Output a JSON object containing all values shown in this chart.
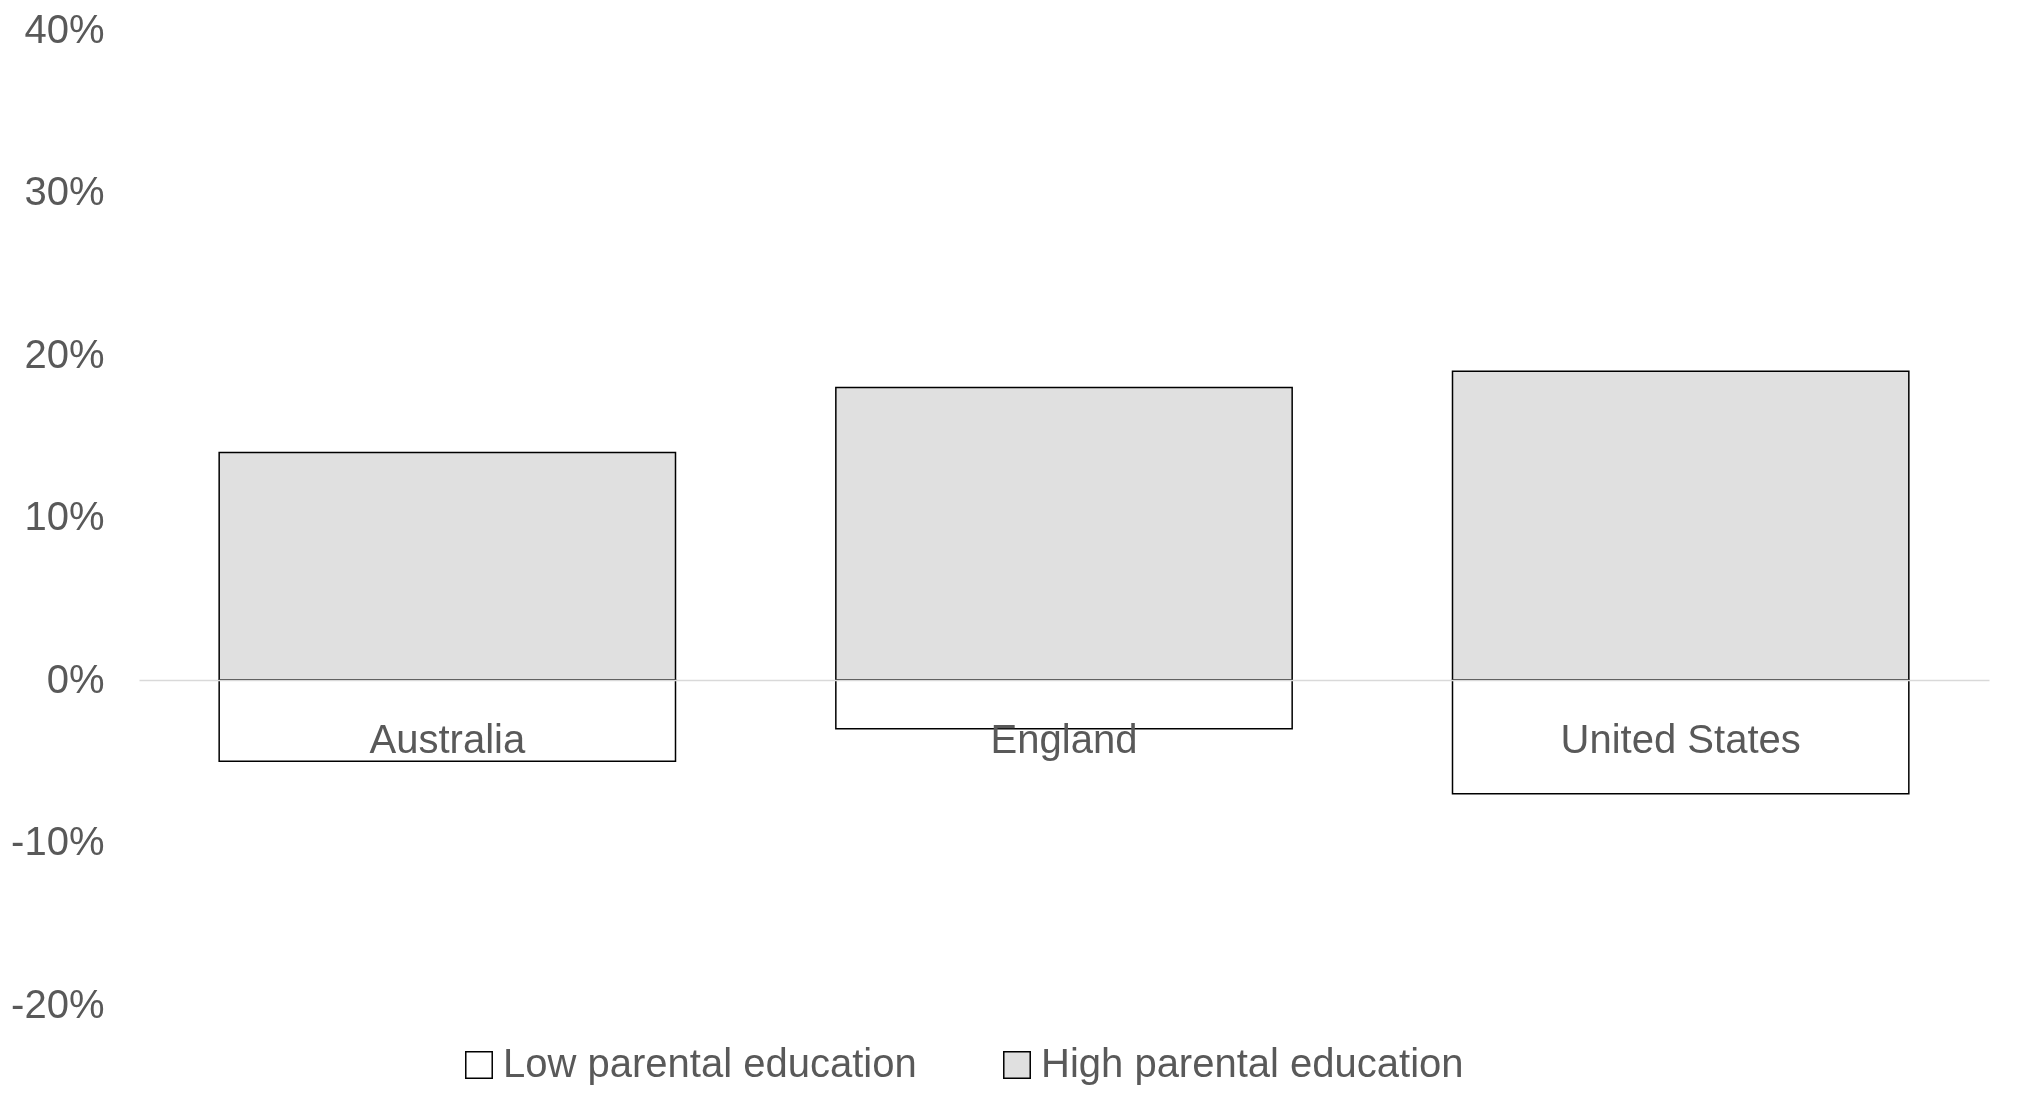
{
  "chart_data": {
    "type": "bar",
    "stacked": true,
    "categories": [
      "Australia",
      "England",
      "United States"
    ],
    "series": [
      {
        "name": "Low parental education",
        "color": "#ffffff",
        "values": [
          -5,
          -3,
          -7
        ]
      },
      {
        "name": "High parental education",
        "color": "#e0e0e0",
        "values": [
          14,
          18,
          19
        ]
      }
    ],
    "ylim": [
      -20,
      40
    ],
    "yticks": [
      {
        "value": -20,
        "label": "-20%"
      },
      {
        "value": -10,
        "label": "-10%"
      },
      {
        "value": 0,
        "label": "0%"
      },
      {
        "value": 10,
        "label": "10%"
      },
      {
        "value": 20,
        "label": "20%"
      },
      {
        "value": 30,
        "label": "30%"
      },
      {
        "value": 40,
        "label": "40%"
      }
    ],
    "grid": false,
    "legend": "bottom"
  }
}
